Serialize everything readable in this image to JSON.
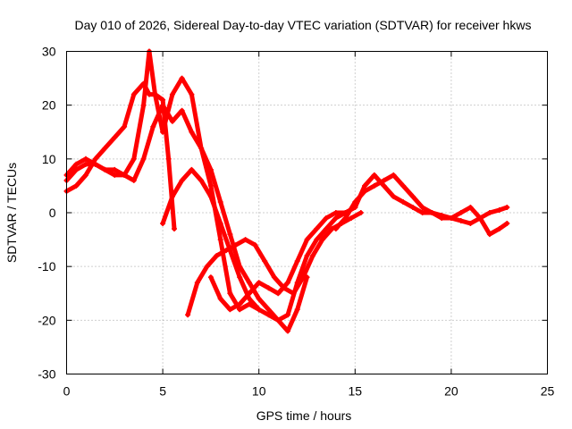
{
  "chart_data": {
    "type": "scatter",
    "title": "Day 010 of 2026, Sidereal Day-to-day VTEC variation (SDTVAR) for receiver hkws",
    "xlabel": "GPS time / hours",
    "ylabel": "SDTVAR / TECUs",
    "xlim": [
      0,
      25
    ],
    "ylim": [
      -30,
      30
    ],
    "xticks": [
      0,
      5,
      10,
      15,
      20,
      25
    ],
    "yticks": [
      -30,
      -20,
      -10,
      0,
      10,
      20,
      30
    ],
    "xtick_labels": [
      "0",
      "5",
      "10",
      "15",
      "20",
      "25"
    ],
    "ytick_labels": [
      "-30",
      "-20",
      "-10",
      "0",
      "10",
      "20",
      "30"
    ],
    "grid": true,
    "marker": "plus",
    "color": "#ff0000",
    "series": [
      {
        "x": [
          0.0,
          0.5,
          1.0,
          1.5,
          2.0,
          2.5,
          3.0,
          3.5,
          4.0,
          4.3,
          4.6,
          5.0,
          5.3,
          5.6
        ],
        "y": [
          4,
          5,
          7,
          10,
          12,
          14,
          16,
          22,
          24,
          22,
          22,
          21,
          10,
          -3
        ]
      },
      {
        "x": [
          0.0,
          0.5,
          1.0,
          1.5,
          2.0,
          2.5,
          3.0,
          3.5,
          4.0,
          4.3,
          4.6,
          5.0,
          5.5,
          6.0,
          6.5,
          7.0,
          7.5,
          8.0,
          8.5,
          9.0,
          9.5,
          10.0
        ],
        "y": [
          6,
          8,
          9,
          9,
          8,
          7,
          7,
          10,
          20,
          30,
          22,
          15,
          22,
          25,
          22,
          12,
          5,
          -5,
          -15,
          -18,
          -17,
          -18
        ]
      },
      {
        "x": [
          0.0,
          0.5,
          1.0,
          1.5,
          2.0,
          2.5,
          3.0,
          3.5,
          4.0,
          4.5,
          5.0,
          5.5,
          6.0,
          6.5,
          7.0,
          7.5,
          8.0,
          8.5,
          9.0,
          9.5,
          10.0,
          10.5,
          11.0,
          11.5,
          12.0,
          12.5
        ],
        "y": [
          7,
          9,
          10,
          9,
          8,
          8,
          7,
          6,
          10,
          16,
          20,
          17,
          19,
          15,
          12,
          8,
          2,
          -4,
          -10,
          -13,
          -16,
          -18,
          -20,
          -22,
          -18,
          -12
        ]
      },
      {
        "x": [
          5.0,
          5.5,
          6.0,
          6.5,
          7.0,
          7.5,
          8.0,
          8.5,
          9.0,
          9.5,
          10.0,
          10.5,
          11.0,
          11.5,
          12.0,
          12.5,
          13.0,
          13.5,
          14.0,
          14.5,
          15.0
        ],
        "y": [
          -2,
          3,
          6,
          8,
          6,
          3,
          -2,
          -7,
          -12,
          -16,
          -18,
          -19,
          -20,
          -19,
          -13,
          -8,
          -5,
          -3,
          -1,
          0,
          1
        ]
      },
      {
        "x": [
          6.3,
          6.8,
          7.3,
          7.8,
          8.3,
          8.8,
          9.3,
          9.8,
          10.3,
          10.8,
          11.3,
          11.8,
          12.3,
          12.8,
          13.3,
          13.8,
          14.3,
          14.8,
          15.3
        ],
        "y": [
          -19,
          -13,
          -10,
          -8,
          -7,
          -6,
          -5,
          -6,
          -9,
          -12,
          -14,
          -15,
          -12,
          -8,
          -5,
          -3,
          -2,
          -1,
          0
        ]
      },
      {
        "x": [
          7.5,
          8.0,
          8.5,
          9.0,
          9.5,
          10.0,
          10.5,
          11.0,
          11.5,
          12.0,
          12.5,
          13.0,
          13.5,
          14.0,
          14.5,
          15.0,
          15.5,
          16.0,
          16.5,
          17.0,
          17.5,
          18.0,
          18.5,
          19.0,
          19.5,
          20.0,
          20.5,
          21.0,
          21.5,
          22.0,
          22.5,
          22.9
        ],
        "y": [
          -12,
          -16,
          -18,
          -17,
          -15,
          -13,
          -14,
          -15,
          -13,
          -9,
          -5,
          -3,
          -1,
          0,
          0,
          1,
          5,
          7,
          5,
          3,
          2,
          1,
          0,
          0,
          -1,
          -1,
          0,
          1,
          -1,
          -4,
          -3,
          -2
        ]
      },
      {
        "x": [
          14.0,
          14.5,
          15.0,
          15.5,
          16.0,
          16.5,
          17.0,
          17.5,
          18.0,
          18.5,
          19.0,
          19.5,
          20.0,
          20.5,
          21.0,
          21.5,
          22.0,
          22.5,
          22.9
        ],
        "y": [
          -3,
          -1,
          2,
          4,
          5,
          6,
          7,
          5,
          3,
          1,
          0,
          -0.5,
          -1,
          -1.5,
          -2,
          -1,
          0,
          0.5,
          1
        ]
      }
    ]
  }
}
